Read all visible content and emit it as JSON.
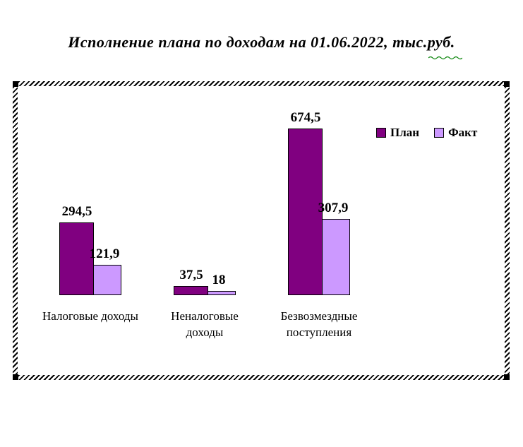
{
  "page": {
    "background": "#ffffff"
  },
  "chart_data": {
    "type": "bar",
    "title": "Исполнение плана по доходам на 01.06.2022, тыс.руб.",
    "categories": [
      "Налоговые доходы",
      "Неналоговые\nдоходы",
      "Безвозмездные\nпоступления"
    ],
    "series": [
      {
        "name": "План",
        "color": "#800080",
        "values": [
          294.5,
          37.5,
          674.5
        ],
        "labels": [
          "294,5",
          "37,5",
          "674,5"
        ]
      },
      {
        "name": "Факт",
        "color": "#cc99ff",
        "values": [
          121.9,
          18,
          307.9
        ],
        "labels": [
          "121,9",
          "18",
          "307,9"
        ]
      }
    ],
    "legend": {
      "entries": [
        "План",
        "Факт"
      ],
      "position": "top-right"
    },
    "ylim": [
      0,
      700
    ],
    "grid": false,
    "axes_visible": false,
    "bar_border_color": "#000000",
    "text_color": "#000000"
  },
  "decorations": {
    "frame_border_style": "diagonal-hatch",
    "frame_color": "#000000",
    "spellcheck_underline_color": "#008000"
  }
}
